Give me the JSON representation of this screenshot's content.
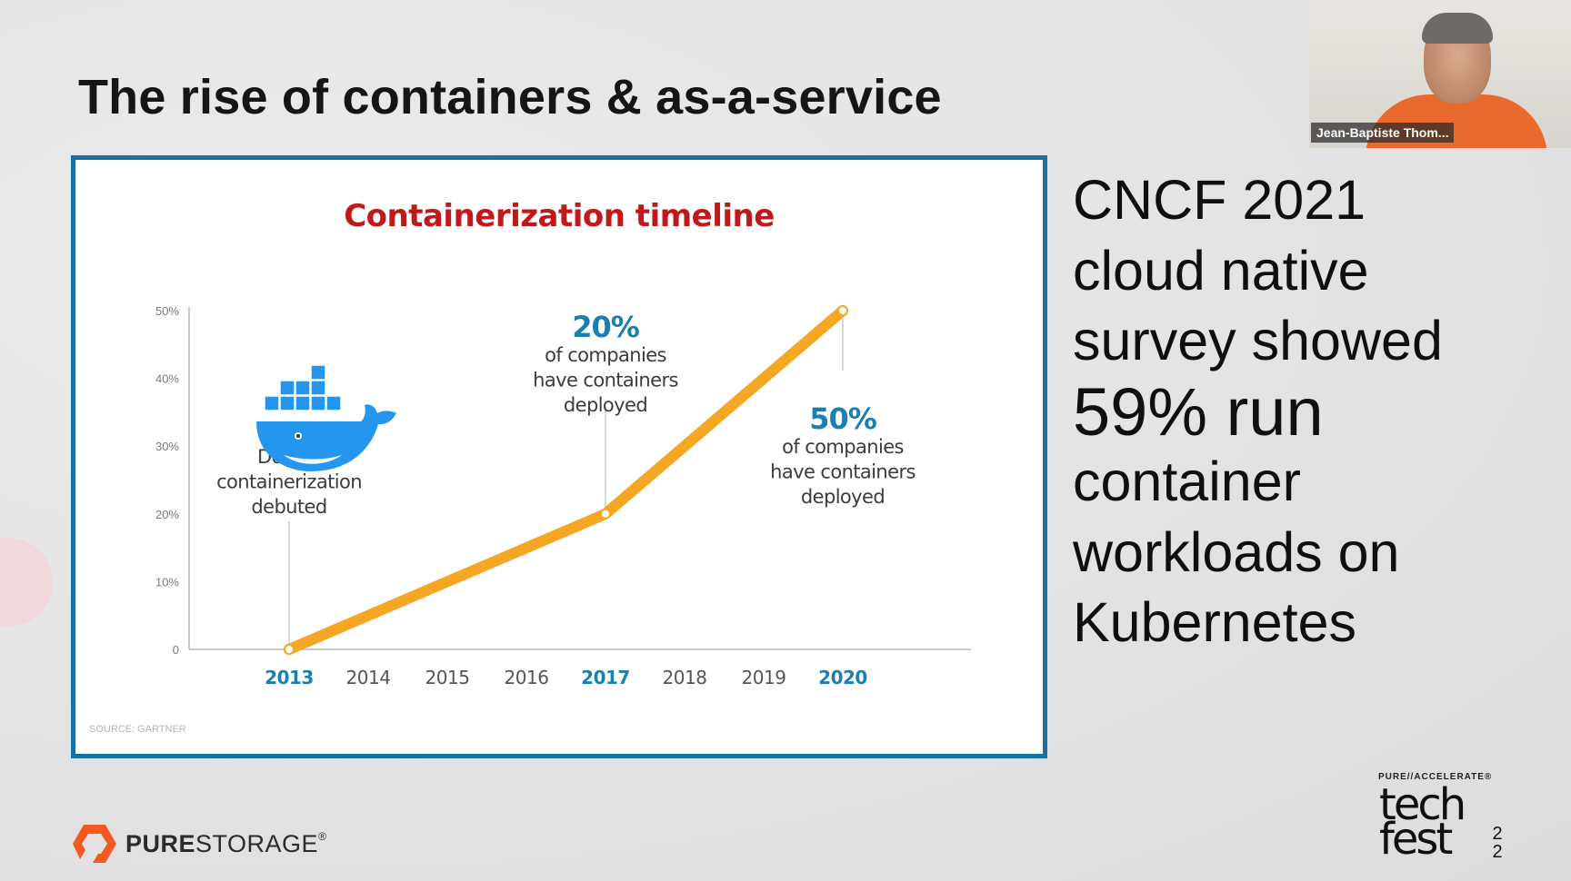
{
  "slide": {
    "title": "The rise of containers & as-a-service"
  },
  "chart_data": {
    "type": "line",
    "title": "Containerization timeline",
    "categories": [
      "2013",
      "2014",
      "2015",
      "2016",
      "2017",
      "2018",
      "2019",
      "2020"
    ],
    "highlighted_categories": [
      "2013",
      "2017",
      "2020"
    ],
    "series": [
      {
        "x": [
          2013,
          2017,
          2020
        ],
        "values": [
          0,
          20,
          50
        ]
      }
    ],
    "yticks": [
      "0",
      "10%",
      "20%",
      "30%",
      "40%",
      "50%"
    ],
    "ylim": [
      0,
      50
    ],
    "grid": false,
    "annotations": [
      {
        "x": 2013,
        "big": "",
        "text": [
          "Docker",
          "containerization",
          "debuted"
        ]
      },
      {
        "x": 2017,
        "big": "20%",
        "text": [
          "of companies",
          "have containers",
          "deployed"
        ]
      },
      {
        "x": 2020,
        "big": "50%",
        "text": [
          "of companies",
          "have containers",
          "deployed"
        ]
      }
    ],
    "source": "SOURCE: GARTNER",
    "colors": {
      "title": "#c0191c",
      "line": "#f5a623",
      "highlight": "#1b7fb0",
      "axis": "#7a7a7a",
      "docker": "#2496ed"
    },
    "icon": "docker-whale-icon"
  },
  "stat": {
    "lines": [
      "CNCF 2021",
      "cloud native",
      "survey showed",
      "59% run",
      "container",
      "workloads on",
      "Kubernetes"
    ]
  },
  "video": {
    "speaker_name": "Jean-Baptiste Thom..."
  },
  "brand": {
    "part1": "PURE",
    "part2": "STORAGE",
    "mark": "®",
    "icon": "purestorage-logo-icon",
    "color": "#f25a22"
  },
  "event": {
    "supertitle": "PURE//ACCELERATE®",
    "word1": "tech",
    "word2": "fest",
    "year_top": "2",
    "year_bottom": "2"
  }
}
